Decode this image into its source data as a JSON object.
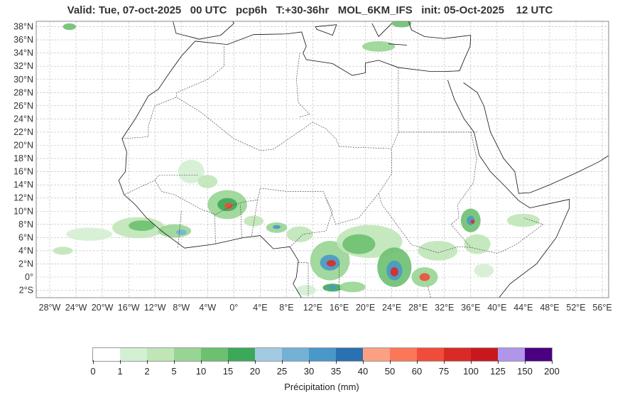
{
  "title": "Valid: Tue, 07-oct-2025   00 UTC   pcp6h   T:+30-36hr   MOL_6KM_IFS   init: 05-Oct-2025    12 UTC",
  "map": {
    "lat_labels": [
      "38°N",
      "36°N",
      "34°N",
      "32°N",
      "30°N",
      "28°N",
      "26°N",
      "24°N",
      "22°N",
      "20°N",
      "18°N",
      "16°N",
      "14°N",
      "12°N",
      "10°N",
      "8°N",
      "6°N",
      "4°N",
      "2°N",
      "0°",
      "2°S"
    ],
    "lat_values": [
      38,
      36,
      34,
      32,
      30,
      28,
      26,
      24,
      22,
      20,
      18,
      16,
      14,
      12,
      10,
      8,
      6,
      4,
      2,
      0,
      -2
    ],
    "lon_labels": [
      "28°W",
      "24°W",
      "20°W",
      "16°W",
      "12°W",
      "8°W",
      "4°W",
      "0°",
      "4°E",
      "8°E",
      "12°E",
      "16°E",
      "20°E",
      "24°E",
      "28°E",
      "32°E",
      "36°E",
      "40°E",
      "44°E",
      "48°E",
      "52°E",
      "56°E"
    ],
    "lon_values": [
      -28,
      -24,
      -20,
      -16,
      -12,
      -8,
      -4,
      0,
      4,
      8,
      12,
      16,
      20,
      24,
      28,
      32,
      36,
      40,
      44,
      48,
      52,
      56
    ]
  },
  "colorbar": {
    "label": "Précipitation (mm)",
    "ticks": [
      "0",
      "1",
      "2",
      "5",
      "10",
      "15",
      "20",
      "25",
      "30",
      "35",
      "40",
      "50",
      "60",
      "75",
      "100",
      "125",
      "150",
      "200"
    ],
    "colors": [
      "#ffffff",
      "#d4f0d2",
      "#c0e6b8",
      "#98d594",
      "#6cc070",
      "#3ca85a",
      "#a2cbe2",
      "#74b1d7",
      "#4a97c9",
      "#2a71b2",
      "#fca083",
      "#fb7758",
      "#f14c3a",
      "#da2a26",
      "#c9181d",
      "#b095eb",
      "#4b0081"
    ]
  }
}
